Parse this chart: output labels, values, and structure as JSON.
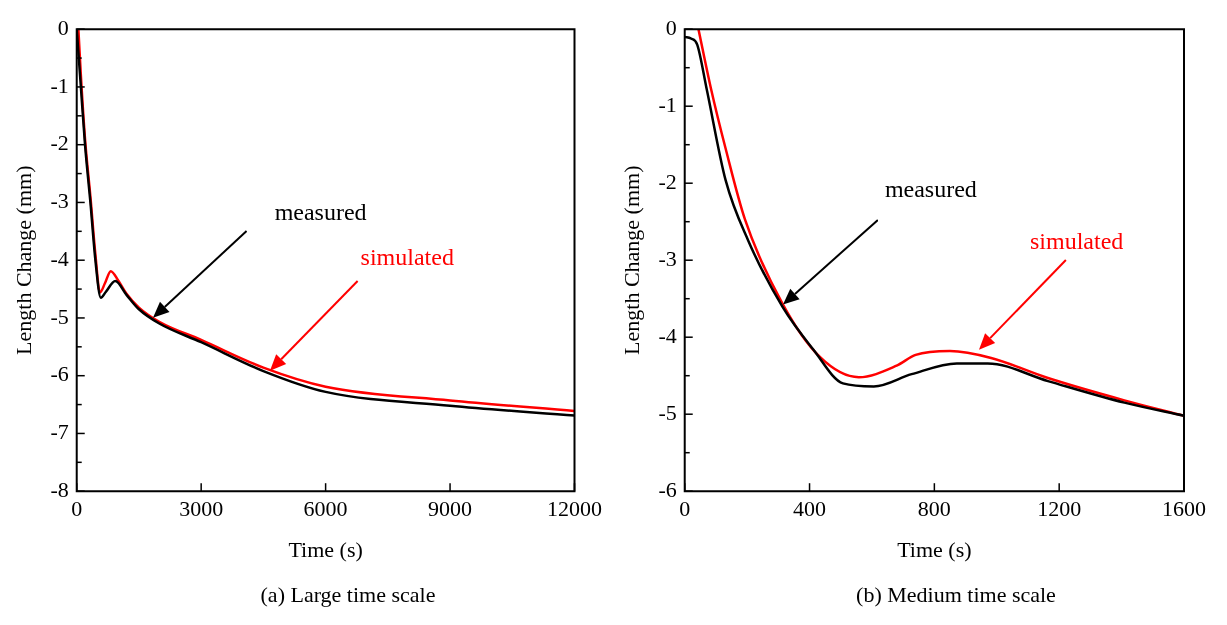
{
  "chart_data": [
    {
      "type": "line",
      "title": "(a) Large time scale",
      "xlabel": "Time (s)",
      "ylabel": "Length Change (mm)",
      "xlim": [
        0,
        12000
      ],
      "xticks": [
        0,
        3000,
        6000,
        9000,
        12000
      ],
      "ylim": [
        -8,
        0
      ],
      "yticks": [
        -8,
        -7,
        -6,
        -5,
        -4,
        -3,
        -2,
        -1,
        0
      ],
      "legend": false,
      "grid": false,
      "marker": "none",
      "line_style": "solid",
      "series": [
        {
          "name": "measured",
          "color": "#000000",
          "x": [
            0,
            100,
            200,
            330,
            450,
            580,
            700,
            930,
            1200,
            1500,
            2000,
            3000,
            4500,
            6000,
            9000,
            12000
          ],
          "values": [
            0,
            -1.0,
            -2.0,
            -3.0,
            -4.0,
            -4.65,
            -4.55,
            -4.36,
            -4.6,
            -4.85,
            -5.1,
            -5.42,
            -5.92,
            -6.28,
            -6.52,
            -6.69
          ]
        },
        {
          "name": "simulated",
          "color": "#ff0000",
          "x": [
            40,
            100,
            200,
            330,
            450,
            560,
            680,
            820,
            1000,
            1200,
            1500,
            2000,
            3000,
            4500,
            6000,
            9000,
            12000
          ],
          "values": [
            0,
            -0.8,
            -1.9,
            -2.9,
            -3.9,
            -4.56,
            -4.4,
            -4.19,
            -4.35,
            -4.58,
            -4.82,
            -5.07,
            -5.38,
            -5.86,
            -6.19,
            -6.43,
            -6.61
          ]
        }
      ]
    },
    {
      "type": "line",
      "title": "(b) Medium time scale",
      "xlabel": "Time (s)",
      "ylabel": "Length Change (mm)",
      "xlim": [
        0,
        1600
      ],
      "xticks": [
        0,
        400,
        800,
        1200,
        1600
      ],
      "ylim": [
        -6,
        0
      ],
      "yticks": [
        -6,
        -5,
        -4,
        -3,
        -2,
        -1,
        0
      ],
      "legend": false,
      "grid": false,
      "marker": "none",
      "line_style": "solid",
      "series": [
        {
          "name": "measured",
          "color": "#000000",
          "x": [
            0,
            20,
            40,
            70,
            131,
            204,
            314,
            412,
            507,
            606,
            727,
            872,
            971,
            1164,
            1409,
            1600
          ],
          "values": [
            -0.1,
            -0.12,
            -0.2,
            -0.77,
            -1.96,
            -2.75,
            -3.61,
            -4.16,
            -4.6,
            -4.64,
            -4.48,
            -4.34,
            -4.34,
            -4.57,
            -4.85,
            -5.02
          ]
        },
        {
          "name": "simulated",
          "color": "#ff0000",
          "x": [
            44,
            84,
            131,
            193,
            314,
            434,
            558,
            679,
            740,
            850,
            982,
            1164,
            1409,
            1600
          ],
          "values": [
            0,
            -0.77,
            -1.55,
            -2.47,
            -3.57,
            -4.26,
            -4.52,
            -4.37,
            -4.23,
            -4.18,
            -4.27,
            -4.53,
            -4.82,
            -5.02
          ]
        }
      ]
    }
  ]
}
